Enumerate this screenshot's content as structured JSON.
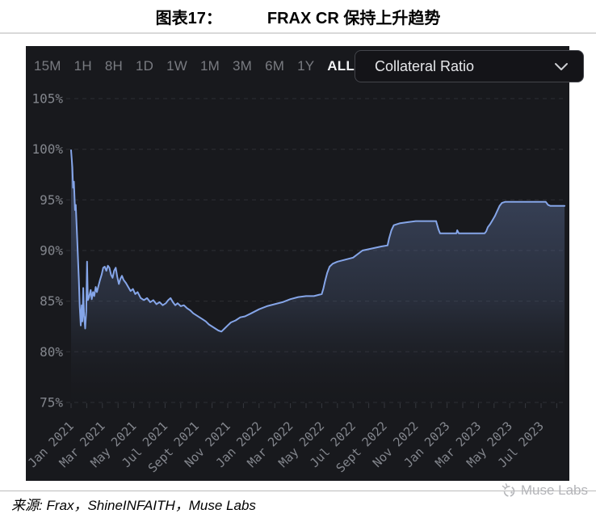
{
  "header": {
    "figure_label": "图表17：",
    "figure_title": "FRAX CR 保持上升趋势"
  },
  "toolbar": {
    "ranges": [
      {
        "label": "15M",
        "active": false
      },
      {
        "label": "1H",
        "active": false
      },
      {
        "label": "8H",
        "active": false
      },
      {
        "label": "1D",
        "active": false
      },
      {
        "label": "1W",
        "active": false
      },
      {
        "label": "1M",
        "active": false
      },
      {
        "label": "3M",
        "active": false
      },
      {
        "label": "6M",
        "active": false
      },
      {
        "label": "1Y",
        "active": false
      },
      {
        "label": "ALL",
        "active": true
      }
    ],
    "dropdown": {
      "value": "Collateral Ratio",
      "icon": "chevron-down-icon"
    }
  },
  "chart_data": {
    "type": "area",
    "title": "Collateral Ratio",
    "xlabel": "",
    "ylabel": "",
    "ylim": [
      73,
      106
    ],
    "xlim_months": [
      0,
      32
    ],
    "grid": "dashed-horizontal",
    "legend": "none",
    "y_ticks": [
      105,
      100,
      95,
      90,
      85,
      80,
      75
    ],
    "y_tick_suffix": "%",
    "x_ticks": [
      {
        "m": 0,
        "label": "Jan 2021"
      },
      {
        "m": 2,
        "label": "Mar 2021"
      },
      {
        "m": 4,
        "label": "May 2021"
      },
      {
        "m": 6,
        "label": "Jul 2021"
      },
      {
        "m": 8,
        "label": "Sept 2021"
      },
      {
        "m": 10,
        "label": "Nov 2021"
      },
      {
        "m": 12,
        "label": "Jan 2022"
      },
      {
        "m": 14,
        "label": "Mar 2022"
      },
      {
        "m": 16,
        "label": "May 2022"
      },
      {
        "m": 18,
        "label": "Jul 2022"
      },
      {
        "m": 20,
        "label": "Sept 2022"
      },
      {
        "m": 22,
        "label": "Nov 2022"
      },
      {
        "m": 24,
        "label": "Jan 2023"
      },
      {
        "m": 26,
        "label": "Mar 2023"
      },
      {
        "m": 28,
        "label": "May 2023"
      },
      {
        "m": 30,
        "label": "Jul 2023"
      }
    ],
    "series": [
      {
        "name": "Collateral Ratio",
        "unit": "%",
        "points": [
          [
            0,
            99.9
          ],
          [
            0.08,
            98.2
          ],
          [
            0.13,
            96.2
          ],
          [
            0.18,
            96.8
          ],
          [
            0.25,
            94.0
          ],
          [
            0.3,
            94.5
          ],
          [
            0.38,
            91.5
          ],
          [
            0.5,
            87.0
          ],
          [
            0.55,
            84.5
          ],
          [
            0.62,
            82.6
          ],
          [
            0.68,
            84.6
          ],
          [
            0.72,
            83.0
          ],
          [
            0.78,
            86.3
          ],
          [
            0.83,
            83.6
          ],
          [
            0.9,
            82.3
          ],
          [
            0.97,
            84.0
          ],
          [
            1.02,
            88.9
          ],
          [
            1.07,
            85.1
          ],
          [
            1.15,
            85.4
          ],
          [
            1.25,
            86.1
          ],
          [
            1.32,
            85.2
          ],
          [
            1.4,
            85.9
          ],
          [
            1.48,
            85.5
          ],
          [
            1.57,
            86.4
          ],
          [
            1.65,
            85.9
          ],
          [
            1.75,
            86.5
          ],
          [
            1.85,
            87.1
          ],
          [
            1.95,
            87.6
          ],
          [
            2.05,
            88.3
          ],
          [
            2.15,
            88.4
          ],
          [
            2.25,
            88.0
          ],
          [
            2.35,
            88.5
          ],
          [
            2.45,
            88.3
          ],
          [
            2.55,
            87.6
          ],
          [
            2.65,
            87.3
          ],
          [
            2.75,
            88.0
          ],
          [
            2.85,
            88.3
          ],
          [
            2.95,
            87.4
          ],
          [
            3.05,
            86.7
          ],
          [
            3.15,
            87.2
          ],
          [
            3.25,
            87.5
          ],
          [
            3.35,
            87.1
          ],
          [
            3.5,
            86.8
          ],
          [
            3.65,
            86.4
          ],
          [
            3.8,
            86.0
          ],
          [
            3.95,
            86.2
          ],
          [
            4.1,
            85.7
          ],
          [
            4.25,
            85.9
          ],
          [
            4.45,
            85.3
          ],
          [
            4.65,
            85.1
          ],
          [
            4.85,
            85.3
          ],
          [
            5.05,
            84.9
          ],
          [
            5.25,
            85.1
          ],
          [
            5.45,
            84.7
          ],
          [
            5.65,
            84.9
          ],
          [
            5.85,
            84.6
          ],
          [
            6.05,
            84.8
          ],
          [
            6.2,
            85.1
          ],
          [
            6.35,
            85.3
          ],
          [
            6.5,
            84.9
          ],
          [
            6.65,
            84.6
          ],
          [
            6.8,
            84.8
          ],
          [
            7.0,
            84.5
          ],
          [
            7.2,
            84.6
          ],
          [
            7.4,
            84.3
          ],
          [
            7.6,
            84.1
          ],
          [
            7.8,
            83.8
          ],
          [
            8.0,
            83.6
          ],
          [
            8.2,
            83.4
          ],
          [
            8.4,
            83.2
          ],
          [
            8.6,
            83.0
          ],
          [
            8.8,
            82.7
          ],
          [
            9.0,
            82.5
          ],
          [
            9.2,
            82.3
          ],
          [
            9.4,
            82.1
          ],
          [
            9.6,
            82.0
          ],
          [
            9.8,
            82.3
          ],
          [
            10.0,
            82.6
          ],
          [
            10.2,
            82.9
          ],
          [
            10.5,
            83.1
          ],
          [
            10.8,
            83.4
          ],
          [
            11.1,
            83.5
          ],
          [
            11.5,
            83.8
          ],
          [
            12.0,
            84.2
          ],
          [
            12.5,
            84.5
          ],
          [
            13.0,
            84.7
          ],
          [
            13.5,
            84.9
          ],
          [
            14.0,
            85.2
          ],
          [
            14.5,
            85.4
          ],
          [
            15.0,
            85.5
          ],
          [
            15.5,
            85.5
          ],
          [
            16.0,
            85.7
          ],
          [
            16.1,
            86.2
          ],
          [
            16.2,
            86.9
          ],
          [
            16.35,
            87.8
          ],
          [
            16.5,
            88.4
          ],
          [
            16.7,
            88.7
          ],
          [
            17.0,
            88.9
          ],
          [
            17.5,
            89.1
          ],
          [
            18.0,
            89.3
          ],
          [
            18.6,
            90.0
          ],
          [
            19.2,
            90.2
          ],
          [
            19.8,
            90.4
          ],
          [
            20.2,
            90.5
          ],
          [
            20.3,
            91.2
          ],
          [
            20.45,
            92.0
          ],
          [
            20.6,
            92.5
          ],
          [
            21.0,
            92.7
          ],
          [
            21.5,
            92.8
          ],
          [
            22.0,
            92.9
          ],
          [
            23.3,
            92.9
          ],
          [
            23.45,
            92.1
          ],
          [
            23.55,
            91.7
          ],
          [
            24.6,
            91.7
          ],
          [
            24.65,
            92.0
          ],
          [
            24.75,
            91.7
          ],
          [
            26.4,
            91.7
          ],
          [
            26.5,
            91.9
          ],
          [
            26.6,
            92.3
          ],
          [
            26.75,
            92.6
          ],
          [
            26.9,
            93.0
          ],
          [
            27.05,
            93.4
          ],
          [
            27.2,
            93.9
          ],
          [
            27.35,
            94.4
          ],
          [
            27.5,
            94.7
          ],
          [
            27.7,
            94.8
          ],
          [
            28.5,
            94.8
          ],
          [
            29.5,
            94.8
          ],
          [
            30.3,
            94.8
          ],
          [
            30.45,
            94.5
          ],
          [
            30.6,
            94.4
          ],
          [
            31.0,
            94.4
          ],
          [
            31.5,
            94.4
          ]
        ]
      }
    ],
    "colors": {
      "line": "#85a5e8",
      "fill_top": "#56688f",
      "fill_bottom": "#1b1c20",
      "grid": "#2d2f35",
      "axis_text": "#83868d",
      "panel_bg": "#18191d"
    }
  },
  "footer": {
    "source": "来源: Frax，ShineINFAITH，Muse Labs",
    "watermark": "Muse Labs"
  }
}
